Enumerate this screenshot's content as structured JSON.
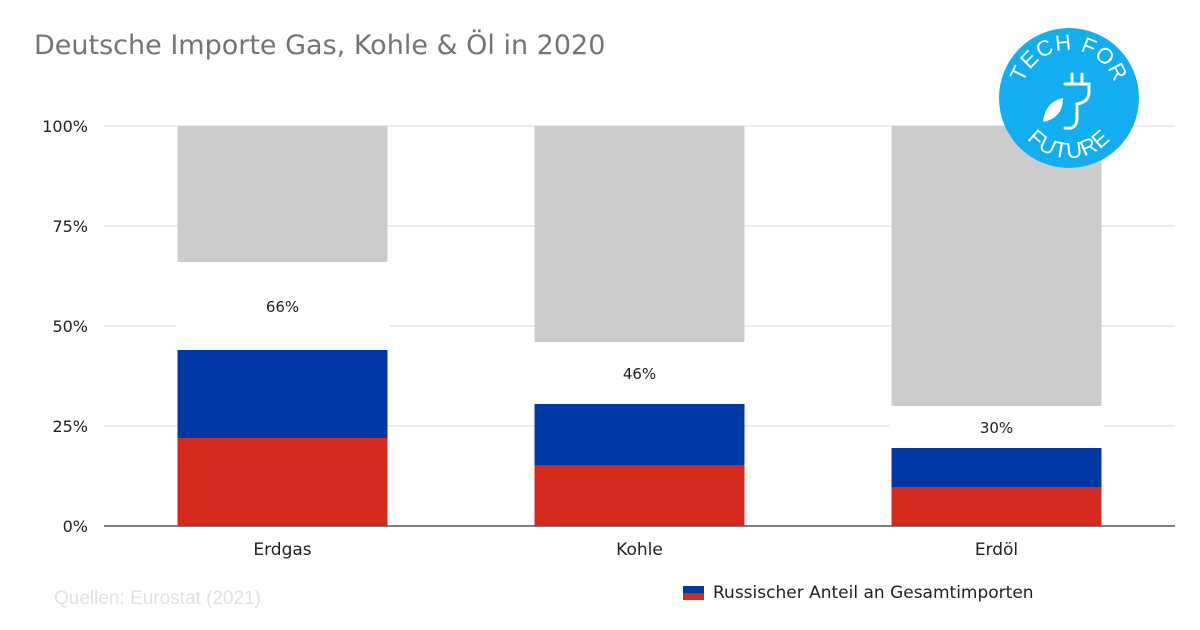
{
  "header": {
    "title": "Deutsche Importe Gas, Kohle & Öl in 2020"
  },
  "source": "Quellen: Eurostat (2021)",
  "legend": {
    "label": "Russischer Anteil an Gesamtimporten"
  },
  "logo": {
    "text_top": "TECH FOR",
    "text_bottom": "FUTURE",
    "color": "#12aeef"
  },
  "colors": {
    "background_bar": "#cccccc",
    "flag_blue": "#0039a6",
    "flag_red": "#d52b1e",
    "grid": "#d9d9d9",
    "axis": "#333333"
  },
  "chart_data": {
    "type": "bar",
    "categories": [
      "Erdgas",
      "Kohle",
      "Erdöl"
    ],
    "total": [
      100,
      100,
      100
    ],
    "russian_share": [
      44,
      30.5,
      19.5
    ],
    "data_labels": [
      "66%",
      "46%",
      "30%"
    ],
    "label_values": [
      66,
      46,
      30
    ],
    "ylim": [
      0,
      100
    ],
    "yticks": [
      0,
      25,
      50,
      75,
      100
    ],
    "ytick_labels": [
      "0%",
      "25%",
      "50%",
      "75%",
      "100%"
    ],
    "grid": true
  }
}
